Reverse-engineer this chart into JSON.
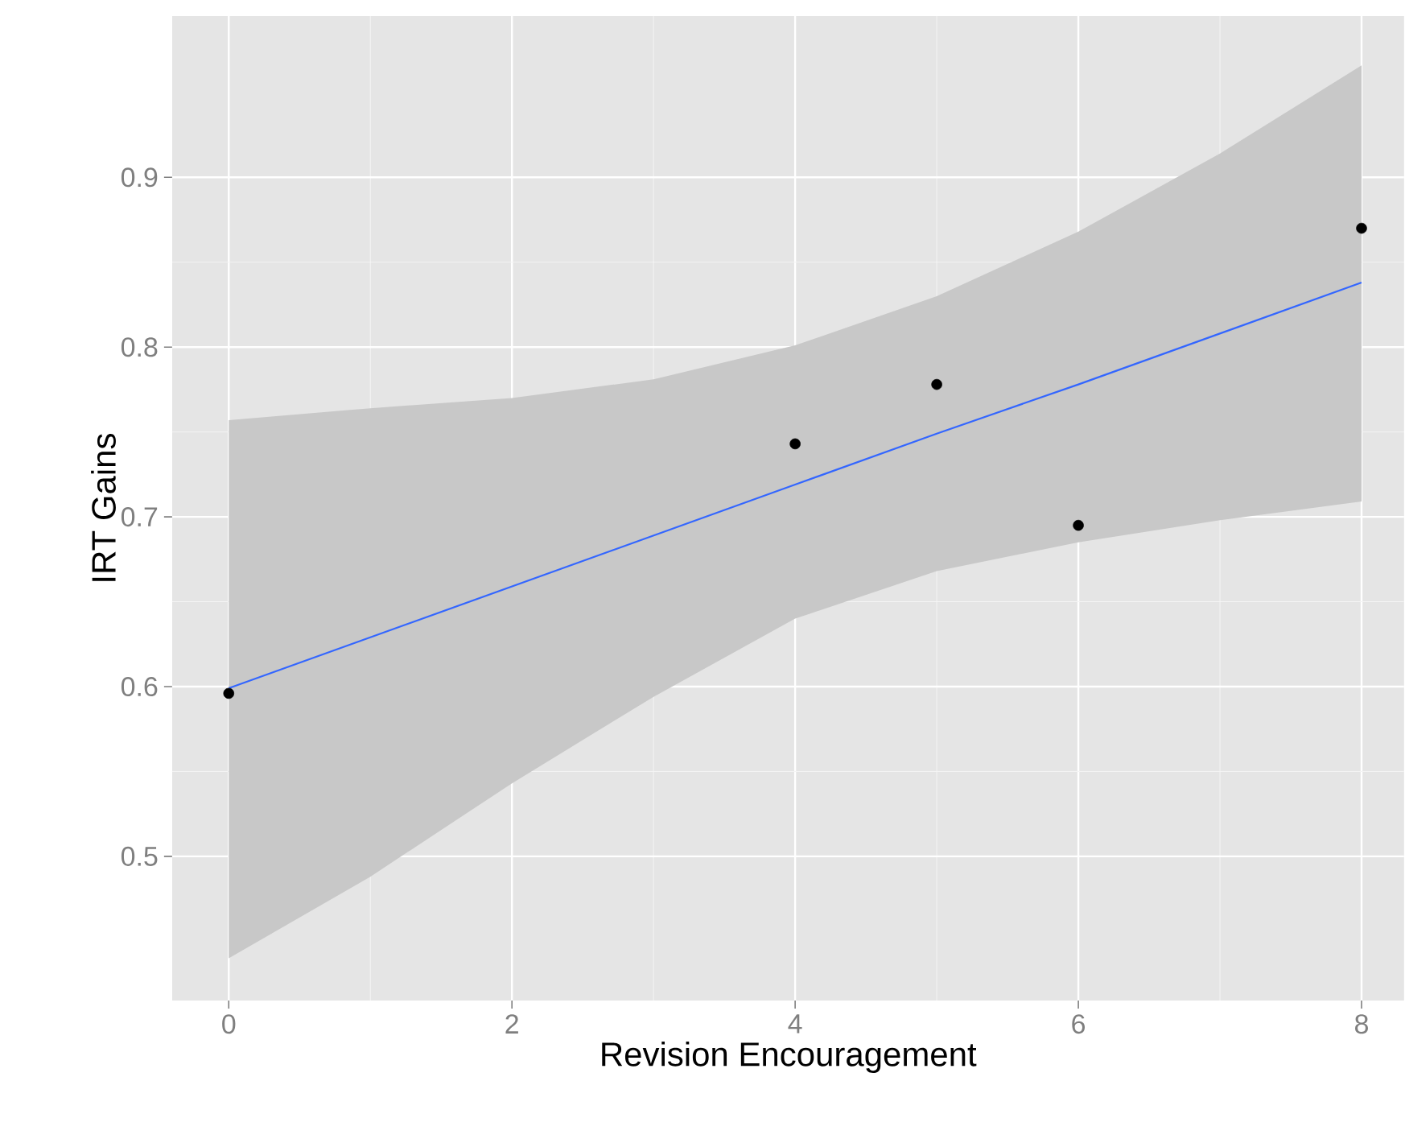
{
  "chart_data": {
    "type": "scatter",
    "xlabel": "Revision Encouragement",
    "ylabel": "IRT Gains",
    "xlim": [
      -0.4,
      8.3
    ],
    "ylim": [
      0.415,
      0.995
    ],
    "xticks": [
      0,
      2,
      4,
      6,
      8
    ],
    "yticks": [
      0.5,
      0.6,
      0.7,
      0.8,
      0.9
    ],
    "grid": true,
    "series": [
      {
        "type": "line",
        "color": "#3366ff",
        "marker": "none",
        "line_style": "solid",
        "x": [
          0,
          1,
          2,
          3,
          4,
          5,
          6,
          7,
          8
        ],
        "values": [
          0.599,
          0.629,
          0.659,
          0.689,
          0.719,
          0.749,
          0.778,
          0.808,
          0.838
        ],
        "lower": [
          0.44,
          0.488,
          0.543,
          0.594,
          0.64,
          0.668,
          0.685,
          0.698,
          0.709
        ],
        "upper": [
          0.757,
          0.764,
          0.77,
          0.781,
          0.801,
          0.83,
          0.868,
          0.914,
          0.966
        ]
      },
      {
        "color": "#000000",
        "marker": "circle",
        "x": [
          0,
          4,
          5,
          6,
          8
        ],
        "values": [
          0.596,
          0.743,
          0.778,
          0.695,
          0.87
        ]
      }
    ]
  }
}
